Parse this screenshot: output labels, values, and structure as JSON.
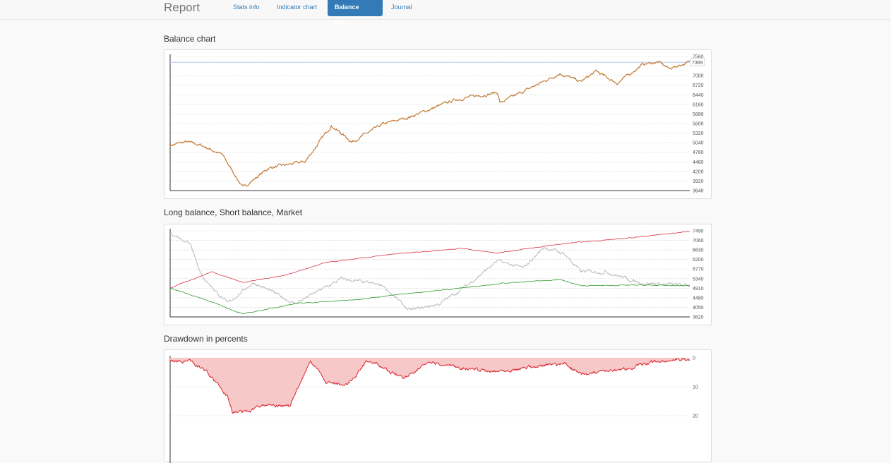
{
  "header": {
    "brand": "Report",
    "tabs": [
      {
        "label": "Stats info",
        "active": false
      },
      {
        "label": "Indicator chart",
        "active": false
      },
      {
        "label": "Balance chart",
        "active": true
      },
      {
        "label": "Journal",
        "active": false
      }
    ]
  },
  "colors": {
    "accent": "#337ab7",
    "balance": "#e8942e",
    "balance_overlay": "#6a5a8a",
    "long": "#d9344a",
    "short": "#2e9a2e",
    "market": "#b8b8b8",
    "drawdown": "#d9232e",
    "drawdown_fill": "#f7c8c8"
  },
  "chart_data": [
    {
      "type": "line",
      "title": "Balance chart",
      "ylim": [
        3640,
        7560
      ],
      "yticks": [
        7560,
        7000,
        6720,
        6440,
        6160,
        5880,
        5600,
        5320,
        5040,
        4760,
        4480,
        4200,
        3920,
        3640
      ],
      "current_value_label": "7389",
      "grid": true,
      "series": [
        {
          "x": [
            0,
            3,
            6,
            10,
            14,
            19,
            26,
            31,
            35,
            41,
            46,
            55,
            63,
            63.5,
            75,
            79,
            82,
            86,
            91,
            94,
            96,
            100
          ],
          "values": [
            4962,
            5065,
            4962,
            4694,
            3725,
            4302,
            4488,
            5540,
            5065,
            5581,
            5787,
            6302,
            6508,
            6199,
            7065,
            6818,
            7127,
            6777,
            7333,
            7395,
            7209,
            7395
          ]
        }
      ]
    },
    {
      "type": "line",
      "title": "Long balance, Short balance, Market",
      "ylim": [
        3620,
        7490
      ],
      "yticks": [
        7490,
        7060,
        6630,
        6200,
        5770,
        5340,
        4910,
        4480,
        4050,
        3620
      ],
      "grid": true,
      "series": [
        {
          "name": "Long balance",
          "x": [
            0,
            8,
            14,
            22,
            30,
            43,
            56,
            63,
            76,
            87,
            100
          ],
          "values": [
            4920,
            5650,
            5170,
            5490,
            6060,
            6440,
            6700,
            6500,
            6920,
            7140,
            7460
          ]
        },
        {
          "name": "Short balance",
          "x": [
            0,
            7,
            14,
            24,
            35,
            43,
            56,
            63,
            75,
            79,
            90,
            100
          ],
          "values": [
            4920,
            4380,
            3750,
            4220,
            4380,
            4600,
            4920,
            5110,
            5300,
            5020,
            5050,
            5020
          ]
        },
        {
          "name": "Market",
          "x": [
            0,
            4,
            6,
            11,
            16,
            24,
            33,
            41,
            46,
            52,
            57,
            63,
            68,
            72,
            76,
            79,
            84,
            90,
            100
          ],
          "values": [
            7400,
            6920,
            5490,
            4220,
            5170,
            4220,
            5330,
            5020,
            3900,
            4220,
            5020,
            6130,
            5810,
            6760,
            6440,
            5650,
            5650,
            5170,
            5020
          ]
        }
      ]
    },
    {
      "type": "area",
      "title": "Drawdown in percents",
      "ylim": [
        0,
        20
      ],
      "yticks": [
        0,
        10,
        20
      ],
      "grid": true,
      "series": [
        {
          "x": [
            0,
            4,
            7,
            11,
            12,
            16,
            19,
            23,
            27,
            30,
            34,
            38,
            45,
            49,
            62,
            76,
            79,
            86,
            94,
            100
          ],
          "values": [
            1,
            1.5,
            4.6,
            13,
            19,
            18,
            15.6,
            17,
            1,
            8.3,
            9.5,
            1,
            7,
            2,
            4.6,
            2,
            5.8,
            4.6,
            1,
            0.3
          ]
        }
      ]
    }
  ]
}
